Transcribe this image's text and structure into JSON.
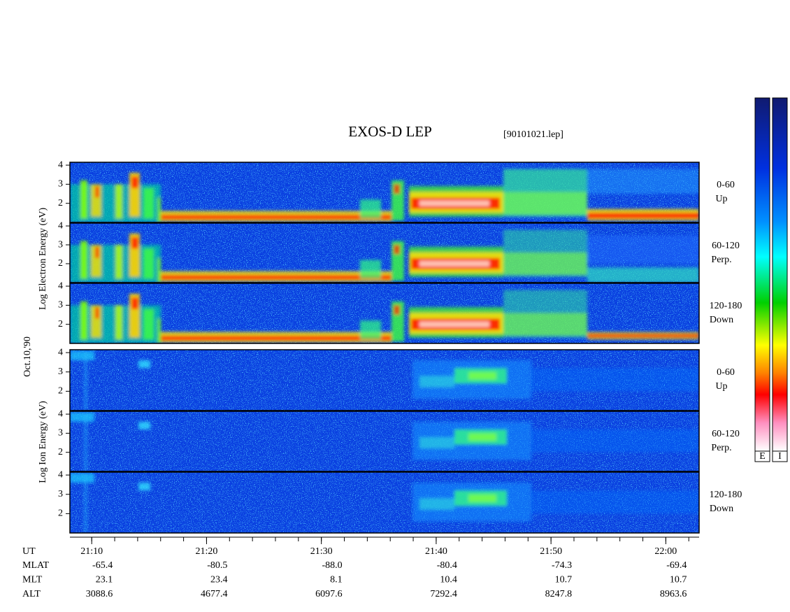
{
  "header": {
    "title": "EXOS-D LEP",
    "file": "[90101021.lep]"
  },
  "date": "Oct.10,'90",
  "electron_axis_label": "Log Electron Energy (eV)",
  "ion_axis_label": "Log Ion Energy (eV)",
  "electron_panels": [
    {
      "pitch": "0-60",
      "dir": "Up"
    },
    {
      "pitch": "60-120",
      "dir": "Perp."
    },
    {
      "pitch": "120-180",
      "dir": "Down"
    }
  ],
  "ion_panels": [
    {
      "pitch": "0-60",
      "dir": "Up"
    },
    {
      "pitch": "60-120",
      "dir": "Perp."
    },
    {
      "pitch": "120-180",
      "dir": "Down"
    }
  ],
  "energy_axis": {
    "ylim": [
      1,
      4.15
    ],
    "yticks": [
      2,
      3,
      4
    ]
  },
  "time_axis": {
    "xlabel": "UT",
    "xlim": [
      1268.1,
      1322.9
    ],
    "xticks": [
      {
        "value": 1270,
        "label": "21:10"
      },
      {
        "value": 1280,
        "label": "21:20"
      },
      {
        "value": 1290,
        "label": "21:30"
      },
      {
        "value": 1300,
        "label": "21:40"
      },
      {
        "value": 1310,
        "label": "21:50"
      },
      {
        "value": 1320,
        "label": "22:00"
      }
    ],
    "minor_xticks": [
      1270,
      1272,
      1274,
      1276,
      1278,
      1280,
      1282,
      1284,
      1286,
      1288,
      1290,
      1292,
      1294,
      1296,
      1298,
      1300,
      1302,
      1304,
      1306,
      1308,
      1310,
      1312,
      1314,
      1316,
      1318,
      1320,
      1322
    ]
  },
  "ephemeris": [
    {
      "name": "MLAT",
      "values": [
        "-65.4",
        "-80.5",
        "-88.0",
        "-80.4",
        "-74.3",
        "-69.4"
      ]
    },
    {
      "name": "MLT",
      "values": [
        "23.1",
        "23.4",
        "8.1",
        "10.4",
        "10.7",
        "10.7"
      ]
    },
    {
      "name": "ALT",
      "values": [
        "3088.6",
        "4677.4",
        "6097.6",
        "7292.4",
        "8247.8",
        "8963.6"
      ]
    }
  ],
  "colorbars": [
    "E",
    "I"
  ]
}
